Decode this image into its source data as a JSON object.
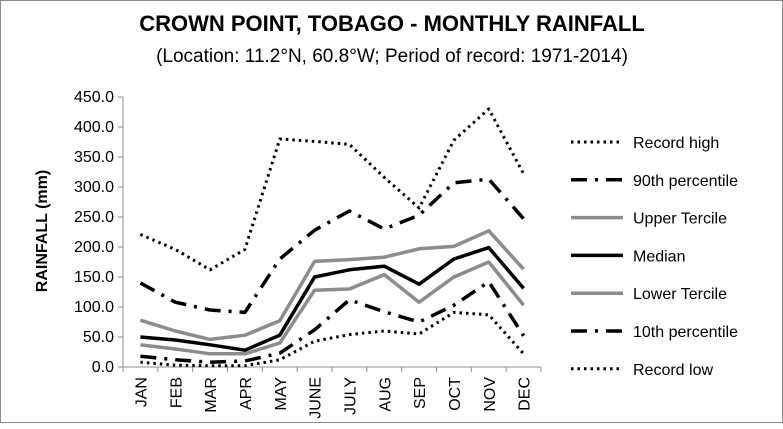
{
  "chart_data": {
    "type": "line",
    "title": "CROWN POINT, TOBAGO - MONTHLY RAINFALL",
    "subtitle": "(Location: 11.2°N, 60.8°W; Period of record: 1971-2014)",
    "xlabel": "",
    "ylabel": "RAINFALL (mm)",
    "ylim": [
      0,
      450
    ],
    "yticks": [
      "0.0",
      "50.0",
      "100.0",
      "150.0",
      "200.0",
      "250.0",
      "300.0",
      "350.0",
      "400.0",
      "450.0"
    ],
    "categories": [
      "JAN",
      "FEB",
      "MAR",
      "APR",
      "MAY",
      "JUNE",
      "JULY",
      "AUG",
      "SEP",
      "OCT",
      "NOV",
      "DEC"
    ],
    "grid": false,
    "legend_position": "right",
    "series": [
      {
        "name": "Record high",
        "style": "dotted",
        "color": "#000000",
        "values": [
          221,
          196,
          162,
          196,
          380,
          376,
          371,
          316,
          265,
          378,
          430,
          322
        ]
      },
      {
        "name": "90th percentile",
        "style": "dashdot",
        "color": "#000000",
        "values": [
          140,
          108,
          95,
          91,
          180,
          228,
          260,
          230,
          253,
          307,
          313,
          247
        ]
      },
      {
        "name": "Upper Tercile",
        "style": "solid-gray",
        "color": "#8c8c8c",
        "values": [
          78,
          60,
          46,
          53,
          77,
          176,
          179,
          183,
          197,
          201,
          227,
          163
        ]
      },
      {
        "name": "Median",
        "style": "solid",
        "color": "#000000",
        "values": [
          50,
          45,
          37,
          28,
          53,
          150,
          162,
          168,
          138,
          180,
          199,
          131
        ]
      },
      {
        "name": "Lower Tercile",
        "style": "solid-gray",
        "color": "#8c8c8c",
        "values": [
          37,
          30,
          22,
          22,
          40,
          128,
          130,
          154,
          108,
          150,
          175,
          103
        ]
      },
      {
        "name": "10th percentile",
        "style": "dashdot",
        "color": "#000000",
        "values": [
          18,
          12,
          8,
          10,
          23,
          62,
          112,
          92,
          75,
          103,
          142,
          52
        ]
      },
      {
        "name": "Record low",
        "style": "dotted",
        "color": "#000000",
        "values": [
          8,
          3,
          2,
          2,
          12,
          43,
          54,
          60,
          55,
          91,
          87,
          22
        ]
      }
    ]
  }
}
